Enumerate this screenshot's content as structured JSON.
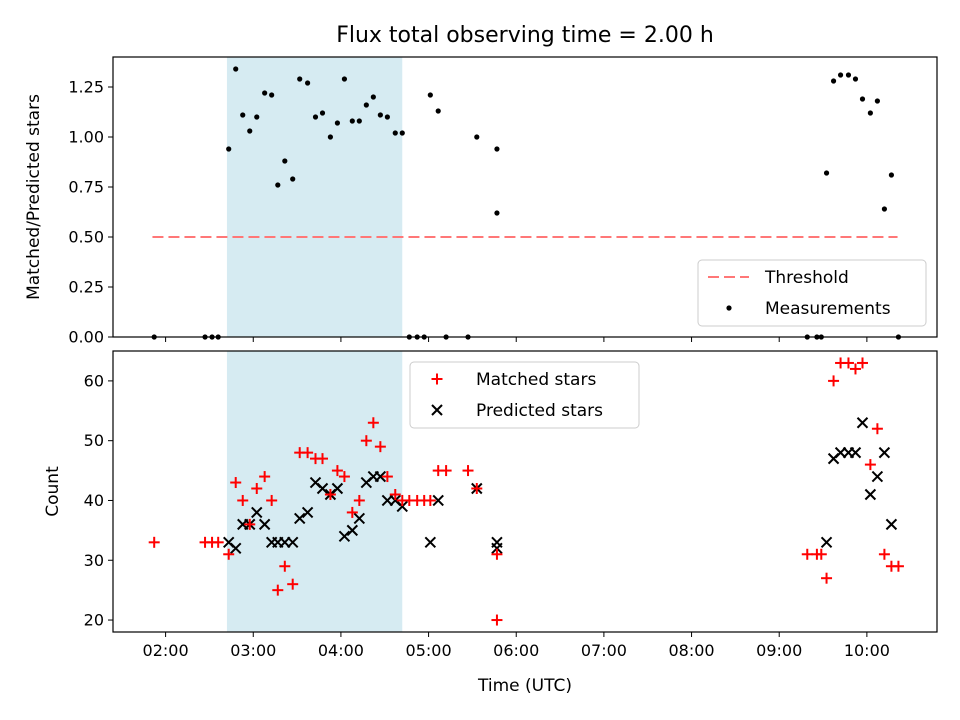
{
  "chart_data": [
    {
      "type": "scatter",
      "title": "Flux total observing time = 2.00 h",
      "ylabel": "Matched/Predicted stars",
      "xlabel": "",
      "x_unit": "hour_utc",
      "xlim": [
        1.4,
        10.8
      ],
      "ylim": [
        0,
        1.4
      ],
      "yticks": [
        0.0,
        0.25,
        0.5,
        0.75,
        1.0,
        1.25
      ],
      "ytick_labels": [
        "0.00",
        "0.25",
        "0.50",
        "0.75",
        "1.00",
        "1.25"
      ],
      "grid": false,
      "legend_position": "lower-right",
      "shaded_span": {
        "x": [
          2.7,
          4.7
        ],
        "color": "#add8e6"
      },
      "threshold": {
        "name": "Threshold",
        "y": 0.5,
        "x": [
          1.85,
          10.35
        ],
        "color": "#ff7777"
      },
      "measurements": {
        "name": "Measurements",
        "color": "#000000",
        "points": [
          [
            1.87,
            0.0
          ],
          [
            2.45,
            0.0
          ],
          [
            2.53,
            0.0
          ],
          [
            2.6,
            0.0
          ],
          [
            2.72,
            0.94
          ],
          [
            2.8,
            1.34
          ],
          [
            2.88,
            1.11
          ],
          [
            2.96,
            1.03
          ],
          [
            3.04,
            1.1
          ],
          [
            3.13,
            1.22
          ],
          [
            3.21,
            1.21
          ],
          [
            3.28,
            0.76
          ],
          [
            3.36,
            0.88
          ],
          [
            3.45,
            0.79
          ],
          [
            3.53,
            1.29
          ],
          [
            3.62,
            1.27
          ],
          [
            3.71,
            1.1
          ],
          [
            3.79,
            1.12
          ],
          [
            3.88,
            1.0
          ],
          [
            3.96,
            1.07
          ],
          [
            4.04,
            1.29
          ],
          [
            4.13,
            1.08
          ],
          [
            4.21,
            1.08
          ],
          [
            4.29,
            1.16
          ],
          [
            4.37,
            1.2
          ],
          [
            4.45,
            1.11
          ],
          [
            4.53,
            1.1
          ],
          [
            4.62,
            1.02
          ],
          [
            4.7,
            1.02
          ],
          [
            4.78,
            0.0
          ],
          [
            4.87,
            0.0
          ],
          [
            4.95,
            0.0
          ],
          [
            5.02,
            1.21
          ],
          [
            5.11,
            1.13
          ],
          [
            5.2,
            0.0
          ],
          [
            5.45,
            0.0
          ],
          [
            5.55,
            1.0
          ],
          [
            5.78,
            0.94
          ],
          [
            5.78,
            0.62
          ],
          [
            9.32,
            0.0
          ],
          [
            9.43,
            0.0
          ],
          [
            9.48,
            0.0
          ],
          [
            9.54,
            0.82
          ],
          [
            9.62,
            1.28
          ],
          [
            9.7,
            1.31
          ],
          [
            9.79,
            1.31
          ],
          [
            9.87,
            1.29
          ],
          [
            9.95,
            1.19
          ],
          [
            10.04,
            1.12
          ],
          [
            10.12,
            1.18
          ],
          [
            10.2,
            0.64
          ],
          [
            10.28,
            0.81
          ],
          [
            10.36,
            0.0
          ]
        ]
      }
    },
    {
      "type": "scatter",
      "title": "",
      "xlabel": "Time (UTC)",
      "ylabel": "Count",
      "x_unit": "hour_utc",
      "xlim": [
        1.4,
        10.8
      ],
      "ylim": [
        18,
        65
      ],
      "xticks": [
        2,
        3,
        4,
        5,
        6,
        7,
        8,
        9,
        10
      ],
      "xtick_labels": [
        "02:00",
        "03:00",
        "04:00",
        "05:00",
        "06:00",
        "07:00",
        "08:00",
        "09:00",
        "10:00"
      ],
      "yticks": [
        20,
        30,
        40,
        50,
        60
      ],
      "ytick_labels": [
        "20",
        "30",
        "40",
        "50",
        "60"
      ],
      "grid": false,
      "legend_position": "top-center",
      "shaded_span": {
        "x": [
          2.7,
          4.7
        ],
        "color": "#add8e6"
      },
      "series": [
        {
          "name": "Matched stars",
          "marker": "plus",
          "color": "#ff0000",
          "points": [
            [
              1.87,
              33
            ],
            [
              2.45,
              33
            ],
            [
              2.53,
              33
            ],
            [
              2.6,
              33
            ],
            [
              2.72,
              31
            ],
            [
              2.8,
              43
            ],
            [
              2.88,
              40
            ],
            [
              2.96,
              36
            ],
            [
              3.04,
              42
            ],
            [
              3.13,
              44
            ],
            [
              3.21,
              40
            ],
            [
              3.28,
              25
            ],
            [
              3.36,
              29
            ],
            [
              3.45,
              26
            ],
            [
              3.53,
              48
            ],
            [
              3.62,
              48
            ],
            [
              3.71,
              47
            ],
            [
              3.79,
              47
            ],
            [
              3.88,
              41
            ],
            [
              3.96,
              45
            ],
            [
              4.04,
              44
            ],
            [
              4.13,
              38
            ],
            [
              4.21,
              40
            ],
            [
              4.29,
              50
            ],
            [
              4.37,
              53
            ],
            [
              4.45,
              49
            ],
            [
              4.53,
              44
            ],
            [
              4.62,
              41
            ],
            [
              4.7,
              40
            ],
            [
              4.78,
              40
            ],
            [
              4.87,
              40
            ],
            [
              4.95,
              40
            ],
            [
              5.02,
              40
            ],
            [
              5.11,
              45
            ],
            [
              5.2,
              45
            ],
            [
              5.45,
              45
            ],
            [
              5.55,
              42
            ],
            [
              5.78,
              31
            ],
            [
              5.78,
              20
            ],
            [
              9.32,
              31
            ],
            [
              9.43,
              31
            ],
            [
              9.48,
              31
            ],
            [
              9.54,
              27
            ],
            [
              9.62,
              60
            ],
            [
              9.7,
              63
            ],
            [
              9.79,
              63
            ],
            [
              9.87,
              62
            ],
            [
              9.95,
              63
            ],
            [
              10.04,
              46
            ],
            [
              10.12,
              52
            ],
            [
              10.2,
              31
            ],
            [
              10.28,
              29
            ],
            [
              10.36,
              29
            ]
          ]
        },
        {
          "name": "Predicted stars",
          "marker": "x",
          "color": "#000000",
          "points": [
            [
              2.72,
              33
            ],
            [
              2.8,
              32
            ],
            [
              2.88,
              36
            ],
            [
              2.96,
              36
            ],
            [
              3.04,
              38
            ],
            [
              3.13,
              36
            ],
            [
              3.21,
              33
            ],
            [
              3.28,
              33
            ],
            [
              3.36,
              33
            ],
            [
              3.45,
              33
            ],
            [
              3.53,
              37
            ],
            [
              3.62,
              38
            ],
            [
              3.71,
              43
            ],
            [
              3.79,
              42
            ],
            [
              3.88,
              41
            ],
            [
              3.96,
              42
            ],
            [
              4.04,
              34
            ],
            [
              4.13,
              35
            ],
            [
              4.21,
              37
            ],
            [
              4.29,
              43
            ],
            [
              4.37,
              44
            ],
            [
              4.45,
              44
            ],
            [
              4.53,
              40
            ],
            [
              4.62,
              40
            ],
            [
              4.7,
              39
            ],
            [
              5.02,
              33
            ],
            [
              5.11,
              40
            ],
            [
              5.55,
              42
            ],
            [
              5.78,
              33
            ],
            [
              5.78,
              32
            ],
            [
              9.54,
              33
            ],
            [
              9.62,
              47
            ],
            [
              9.7,
              48
            ],
            [
              9.79,
              48
            ],
            [
              9.87,
              48
            ],
            [
              9.95,
              53
            ],
            [
              10.04,
              41
            ],
            [
              10.12,
              44
            ],
            [
              10.2,
              48
            ],
            [
              10.28,
              36
            ]
          ]
        }
      ]
    }
  ]
}
